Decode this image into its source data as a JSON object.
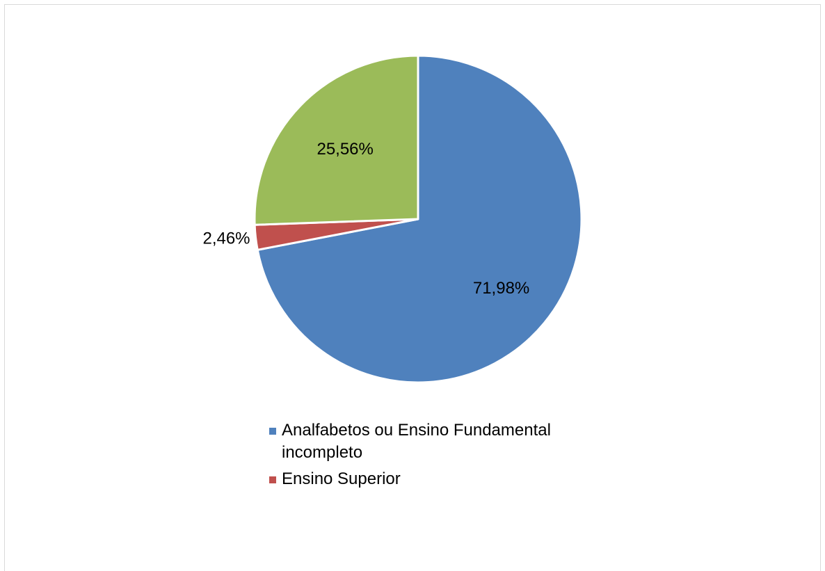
{
  "chart_data": {
    "type": "pie",
    "title": "",
    "slices": [
      {
        "name": "Analfabetos ou Ensino Fundamental incompleto",
        "value": 71.98,
        "label": "71,98%",
        "color": "#4F81BD",
        "in_legend": true
      },
      {
        "name": "Ensino Superior",
        "value": 2.46,
        "label": "2,46%",
        "color": "#C0504D",
        "in_legend": true
      },
      {
        "name": "",
        "value": 25.56,
        "label": "25,56%",
        "color": "#9BBB59",
        "in_legend": false
      }
    ],
    "start_angle_deg": 0,
    "direction": "clockwise",
    "legend_position": "bottom"
  },
  "legend": {
    "items": [
      {
        "label": "Analfabetos ou Ensino Fundamental incompleto",
        "color": "#4F81BD"
      },
      {
        "label": "Ensino Superior",
        "color": "#C0504D"
      }
    ]
  }
}
